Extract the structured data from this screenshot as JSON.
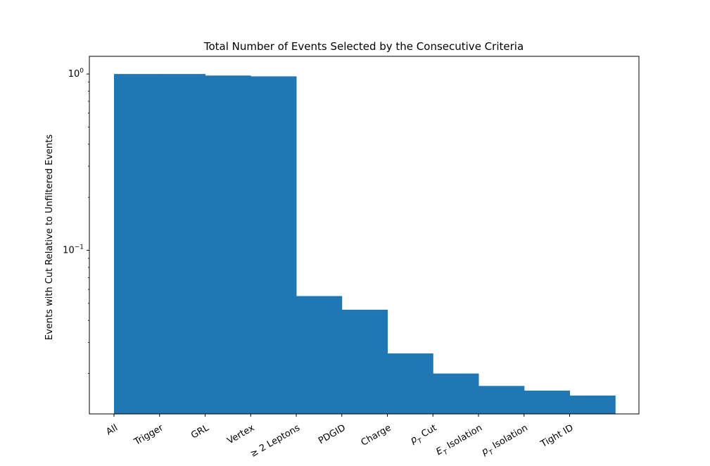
{
  "chart_data": {
    "type": "bar",
    "title": "Total Number of Events Selected by the Consecutive Criteria",
    "xlabel": "",
    "ylabel": "Events with Cut Relative to Unfiltered Events",
    "yscale": "log",
    "ylim": [
      0.0118,
      1.26
    ],
    "yticks": [
      {
        "value": 1,
        "base": "10",
        "exp": "0"
      },
      {
        "value": 0.1,
        "base": "10",
        "exp": "−1"
      }
    ],
    "categories": [
      {
        "label": "All",
        "parts": [
          {
            "t": "All"
          }
        ]
      },
      {
        "label": "Trigger",
        "parts": [
          {
            "t": "Trigger"
          }
        ]
      },
      {
        "label": "GRL",
        "parts": [
          {
            "t": "GRL"
          }
        ]
      },
      {
        "label": "Vertex",
        "parts": [
          {
            "t": "Vertex"
          }
        ]
      },
      {
        "label": "≥ 2 Leptons",
        "parts": [
          {
            "t": "≥ 2 Leptons"
          }
        ]
      },
      {
        "label": "PDGID",
        "parts": [
          {
            "t": "PDGID"
          }
        ]
      },
      {
        "label": "Charge",
        "parts": [
          {
            "t": "Charge"
          }
        ]
      },
      {
        "label": "pT Cut",
        "parts": [
          {
            "t": "p",
            "i": true
          },
          {
            "t": "T",
            "sub": true,
            "i": true
          },
          {
            "t": " Cut"
          }
        ]
      },
      {
        "label": "ET Isolation",
        "parts": [
          {
            "t": "E",
            "i": true
          },
          {
            "t": "T",
            "sub": true,
            "i": true
          },
          {
            "t": " Isolation"
          }
        ]
      },
      {
        "label": "pT Isolation",
        "parts": [
          {
            "t": "p",
            "i": true
          },
          {
            "t": "T",
            "sub": true,
            "i": true
          },
          {
            "t": " Isolation"
          }
        ]
      },
      {
        "label": "Tight ID",
        "parts": [
          {
            "t": "Tight ID"
          }
        ]
      }
    ],
    "values": [
      1.0,
      1.0,
      0.98,
      0.97,
      0.055,
      0.046,
      0.026,
      0.02,
      0.017,
      0.016,
      0.015
    ],
    "grid": false,
    "colors": {
      "bar": "#1f77b4",
      "axes": "#000000",
      "background": "#ffffff"
    }
  }
}
